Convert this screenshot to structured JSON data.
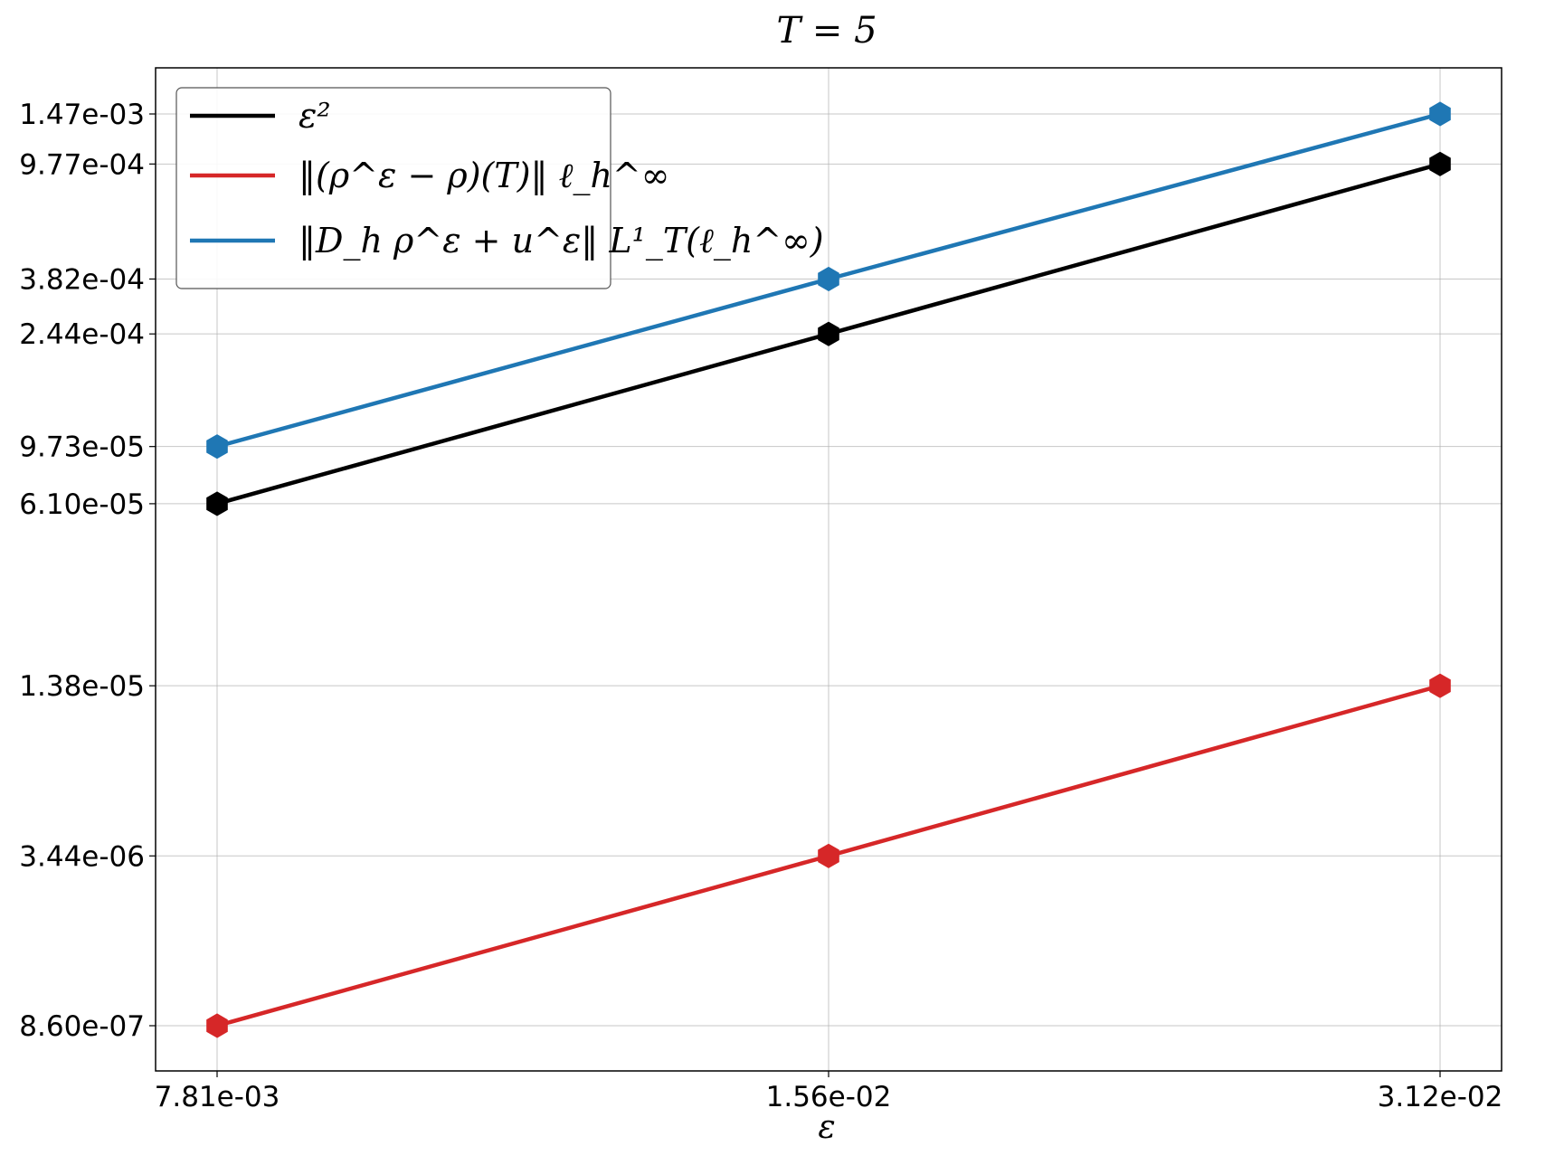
{
  "chart_data": {
    "type": "line",
    "title": "T = 5",
    "xlabel": "ε",
    "ylabel": "",
    "x_scale": "log",
    "y_scale": "log",
    "grid": true,
    "legend_position": "top-left",
    "x": [
      0.0078125,
      0.015625,
      0.03125
    ],
    "x_tick_labels": [
      "7.81e-03",
      "1.56e-02",
      "3.12e-02"
    ],
    "y_ticks": [
      8.6e-07,
      3.44e-06,
      1.38e-05,
      6.1e-05,
      9.73e-05,
      0.000244,
      0.000382,
      0.000977,
      0.00147
    ],
    "y_tick_labels": [
      "8.60e-07",
      "3.44e-06",
      "1.38e-05",
      "6.10e-05",
      "9.73e-05",
      "2.44e-04",
      "3.82e-04",
      "9.77e-04",
      "1.47e-03"
    ],
    "series": [
      {
        "name": "ε²",
        "color": "#000000",
        "marker": "hexagon",
        "values": [
          6.1e-05,
          0.000244,
          0.000977
        ]
      },
      {
        "name": "‖(ρ^ε − ρ)(T)‖ ℓ_h^∞",
        "color": "#d62728",
        "marker": "hexagon",
        "values": [
          8.6e-07,
          3.44e-06,
          1.38e-05
        ]
      },
      {
        "name": "‖D_h ρ^ε + u^ε‖ L¹_T(ℓ_h^∞)",
        "color": "#1f77b4",
        "marker": "hexagon",
        "values": [
          9.73e-05,
          0.000382,
          0.00147
        ]
      }
    ]
  }
}
